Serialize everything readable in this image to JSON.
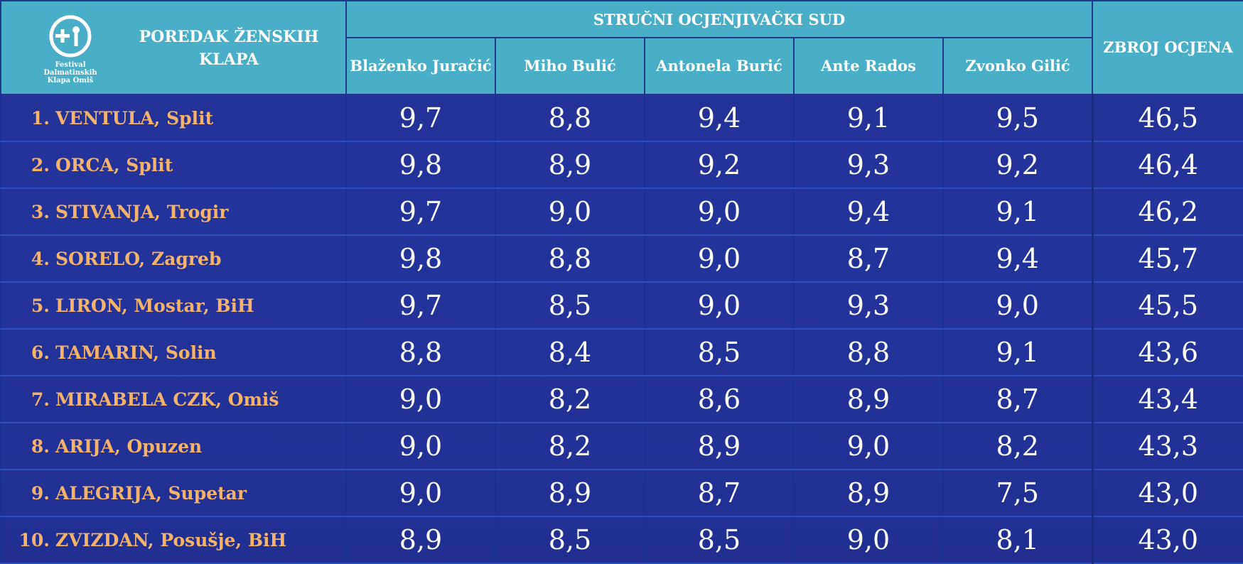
{
  "header": {
    "logo_text": [
      "Festival",
      "Dalmatinskih",
      "Klapa Omiš"
    ],
    "title": "POREDAK ŽENSKIH KLAPA",
    "jury_title": "STRUČNI OCJENJIVAČKI SUD",
    "judges": [
      "Blaženko Juračić",
      "Miho Bulić",
      "Antonela Burić",
      "Ante Rados",
      "Zvonko Gilić"
    ],
    "total_label": "ZBROJ OCJENA"
  },
  "rows": [
    {
      "rank": "1.",
      "name": "VENTULA, Split",
      "scores": [
        "9,7",
        "8,8",
        "9,4",
        "9,1",
        "9,5"
      ],
      "total": "46,5"
    },
    {
      "rank": "2.",
      "name": "ORCA, Split",
      "scores": [
        "9,8",
        "8,9",
        "9,2",
        "9,3",
        "9,2"
      ],
      "total": "46,4"
    },
    {
      "rank": "3.",
      "name": "STIVANJA, Trogir",
      "scores": [
        "9,7",
        "9,0",
        "9,0",
        "9,4",
        "9,1"
      ],
      "total": "46,2"
    },
    {
      "rank": "4.",
      "name": "SORELO, Zagreb",
      "scores": [
        "9,8",
        "8,8",
        "9,0",
        "8,7",
        "9,4"
      ],
      "total": "45,7"
    },
    {
      "rank": "5.",
      "name": "LIRON, Mostar, BiH",
      "scores": [
        "9,7",
        "8,5",
        "9,0",
        "9,3",
        "9,0"
      ],
      "total": "45,5"
    },
    {
      "rank": "6.",
      "name": "TAMARIN, Solin",
      "scores": [
        "8,8",
        "8,4",
        "8,5",
        "8,8",
        "9,1"
      ],
      "total": "43,6"
    },
    {
      "rank": "7.",
      "name": "MIRABELA CZK, Omiš",
      "scores": [
        "9,0",
        "8,2",
        "8,6",
        "8,9",
        "8,7"
      ],
      "total": "43,4"
    },
    {
      "rank": "8.",
      "name": "ARIJA, Opuzen",
      "scores": [
        "9,0",
        "8,2",
        "8,9",
        "9,0",
        "8,2"
      ],
      "total": "43,3"
    },
    {
      "rank": "9.",
      "name": "ALEGRIJA, Supetar",
      "scores": [
        "9,0",
        "8,9",
        "8,7",
        "8,9",
        "7,5"
      ],
      "total": "43,0"
    },
    {
      "rank": "10.",
      "name": "ZVIZDAN, Posušje, BiH",
      "scores": [
        "8,9",
        "8,5",
        "8,5",
        "9,0",
        "8,1"
      ],
      "total": "43,0"
    }
  ],
  "colors": {
    "header_bg": "#4aaec9",
    "name_text": "#f4b36a",
    "body_bg": "#2235a0"
  }
}
